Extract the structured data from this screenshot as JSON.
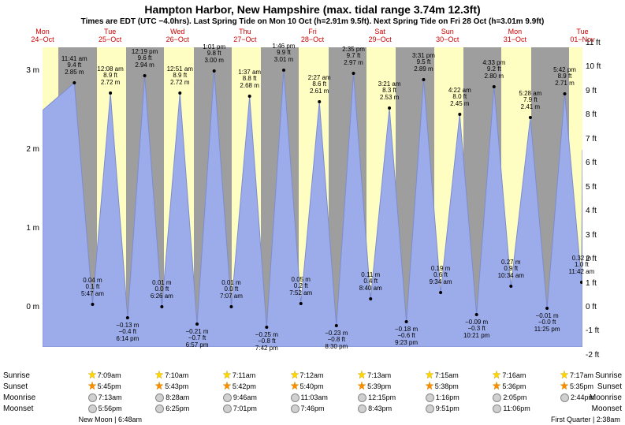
{
  "title": "Hampton Harbor, New Hampshire (max. tidal range 3.74m 12.3ft)",
  "subtitle": "Times are EDT (UTC −4.0hrs). Last Spring Tide on Mon 10 Oct (h=2.91m 9.5ft). Next Spring Tide on Fri 28 Oct (h=3.01m 9.9ft)",
  "colors": {
    "night_bg": "#9e9e9e",
    "day_bg": "#fffec2",
    "tide_fill": "#9cacea",
    "tide_stroke": "#7c8cd0",
    "date_text": "#cc0000",
    "sunrise_star": "#ffd700",
    "sunset_star": "#ff8c00",
    "moon_fill": "#d0d0d0"
  },
  "y_axis_m": {
    "min": -0.5,
    "max": 3.3,
    "ticks": [
      0,
      1,
      2,
      3
    ],
    "unit": "m"
  },
  "y_axis_ft": {
    "ticks": [
      -2,
      -1,
      0,
      1,
      2,
      3,
      4,
      5,
      6,
      7,
      8,
      9,
      10,
      11
    ],
    "unit": "ft"
  },
  "days": [
    {
      "dow": "Mon",
      "date": "24−Oct",
      "sunrise": "",
      "sunset": "",
      "moonrise": "",
      "moonset": ""
    },
    {
      "dow": "Tue",
      "date": "25−Oct",
      "sunrise": "7:09am",
      "sunset": "5:45pm",
      "moonrise": "7:13am",
      "moonset": "5:56pm"
    },
    {
      "dow": "Wed",
      "date": "26−Oct",
      "sunrise": "7:10am",
      "sunset": "5:43pm",
      "moonrise": "8:28am",
      "moonset": "6:25pm"
    },
    {
      "dow": "Thu",
      "date": "27−Oct",
      "sunrise": "7:11am",
      "sunset": "5:42pm",
      "moonrise": "9:46am",
      "moonset": "7:01pm"
    },
    {
      "dow": "Fri",
      "date": "28−Oct",
      "sunrise": "7:12am",
      "sunset": "5:40pm",
      "moonrise": "11:03am",
      "moonset": "7:46pm"
    },
    {
      "dow": "Sat",
      "date": "29−Oct",
      "sunrise": "7:13am",
      "sunset": "5:39pm",
      "moonrise": "12:15pm",
      "moonset": "8:43pm"
    },
    {
      "dow": "Sun",
      "date": "30−Oct",
      "sunrise": "7:15am",
      "sunset": "5:38pm",
      "moonrise": "1:16pm",
      "moonset": "9:51pm"
    },
    {
      "dow": "Mon",
      "date": "31−Oct",
      "sunrise": "7:16am",
      "sunset": "5:36pm",
      "moonrise": "2:05pm",
      "moonset": "11:06pm"
    },
    {
      "dow": "Tue",
      "date": "01−Nov",
      "sunrise": "7:17am",
      "sunset": "5:35pm",
      "moonrise": "2:44pm",
      "moonset": ""
    }
  ],
  "moon_phases": [
    {
      "label": "New Moon | 6:48am",
      "day_index": 1
    },
    {
      "label": "First Quarter | 2:38am",
      "day_index": 8
    }
  ],
  "sun_times": {
    "sunrise_hr": 7.2,
    "sunset_hr": 17.7
  },
  "tides": [
    {
      "day": 0,
      "hr": 23.3,
      "h_m": 2.85,
      "time": "11:41 am",
      "ft": "9.4 ft",
      "m": "2.85 m",
      "type": "high",
      "label_pos": "above"
    },
    {
      "day": 1,
      "hr": 5.78,
      "h_m": 0.04,
      "time": "5:47 am",
      "ft": "0.1 ft",
      "m": "0.04 m",
      "type": "low",
      "label_pos": "above"
    },
    {
      "day": 1,
      "hr": 12.13,
      "h_m": 2.72,
      "time": "12:08 am",
      "ft": "8.9 ft",
      "m": "2.72 m",
      "type": "high",
      "label_pos": "above"
    },
    {
      "day": 1,
      "hr": 18.23,
      "h_m": -0.13,
      "time": "6:14 pm",
      "ft": "−0.4 ft",
      "m": "−0.13 m",
      "type": "low",
      "label_pos": "below"
    },
    {
      "day": 2,
      "hr": 0.32,
      "h_m": 2.94,
      "time": "12:19 pm",
      "ft": "9.6 ft",
      "m": "2.94 m",
      "type": "high",
      "label_pos": "above"
    },
    {
      "day": 2,
      "hr": 6.43,
      "h_m": 0.01,
      "time": "6:26 am",
      "ft": "0.0 ft",
      "m": "0.01 m",
      "type": "low",
      "label_pos": "above"
    },
    {
      "day": 2,
      "hr": 12.85,
      "h_m": 2.72,
      "time": "12:51 am",
      "ft": "8.9 ft",
      "m": "2.72 m",
      "type": "high",
      "label_pos": "above"
    },
    {
      "day": 2,
      "hr": 18.95,
      "h_m": -0.21,
      "time": "6:57 pm",
      "ft": "−0.7 ft",
      "m": "−0.21 m",
      "type": "low",
      "label_pos": "below"
    },
    {
      "day": 3,
      "hr": 1.02,
      "h_m": 3.0,
      "time": "1:01 pm",
      "ft": "9.8 ft",
      "m": "3.00 m",
      "type": "high",
      "label_pos": "above"
    },
    {
      "day": 3,
      "hr": 7.12,
      "h_m": 0.01,
      "time": "7:07 am",
      "ft": "0.0 ft",
      "m": "0.01 m",
      "type": "low",
      "label_pos": "above"
    },
    {
      "day": 3,
      "hr": 13.62,
      "h_m": 2.68,
      "time": "1:37 am",
      "ft": "8.8 ft",
      "m": "2.68 m",
      "type": "high",
      "label_pos": "above"
    },
    {
      "day": 3,
      "hr": 19.7,
      "h_m": -0.25,
      "time": "7:42 pm",
      "ft": "−0.8 ft",
      "m": "−0.25 m",
      "type": "low",
      "label_pos": "below"
    },
    {
      "day": 4,
      "hr": 1.77,
      "h_m": 3.01,
      "time": "1:46 pm",
      "ft": "9.9 ft",
      "m": "3.01 m",
      "type": "high",
      "label_pos": "above"
    },
    {
      "day": 4,
      "hr": 7.87,
      "h_m": 0.05,
      "time": "7:52 am",
      "ft": "0.2 ft",
      "m": "0.05 m",
      "type": "low",
      "label_pos": "above"
    },
    {
      "day": 4,
      "hr": 14.45,
      "h_m": 2.61,
      "time": "2:27 am",
      "ft": "8.6 ft",
      "m": "2.61 m",
      "type": "high",
      "label_pos": "above"
    },
    {
      "day": 4,
      "hr": 20.5,
      "h_m": -0.23,
      "time": "8:30 pm",
      "ft": "−0.8 ft",
      "m": "−0.23 m",
      "type": "low",
      "label_pos": "below"
    },
    {
      "day": 5,
      "hr": 2.58,
      "h_m": 2.97,
      "time": "2:35 pm",
      "ft": "9.7 ft",
      "m": "2.97 m",
      "type": "high",
      "label_pos": "above"
    },
    {
      "day": 5,
      "hr": 8.67,
      "h_m": 0.11,
      "time": "8:40 am",
      "ft": "0.4 ft",
      "m": "0.11 m",
      "type": "low",
      "label_pos": "above"
    },
    {
      "day": 5,
      "hr": 15.35,
      "h_m": 2.53,
      "time": "3:21 am",
      "ft": "8.3 ft",
      "m": "2.53 m",
      "type": "high",
      "label_pos": "above"
    },
    {
      "day": 5,
      "hr": 21.38,
      "h_m": -0.18,
      "time": "9:23 pm",
      "ft": "−0.6 ft",
      "m": "−0.18 m",
      "type": "low",
      "label_pos": "below"
    },
    {
      "day": 6,
      "hr": 3.52,
      "h_m": 2.89,
      "time": "3:31 pm",
      "ft": "9.5 ft",
      "m": "2.89 m",
      "type": "high",
      "label_pos": "above"
    },
    {
      "day": 6,
      "hr": 9.57,
      "h_m": 0.19,
      "time": "9:34 am",
      "ft": "0.6 ft",
      "m": "0.19 m",
      "type": "low",
      "label_pos": "above"
    },
    {
      "day": 6,
      "hr": 16.37,
      "h_m": 2.45,
      "time": "4:22 am",
      "ft": "8.0 ft",
      "m": "2.45 m",
      "type": "high",
      "label_pos": "above"
    },
    {
      "day": 6,
      "hr": 22.35,
      "h_m": -0.09,
      "time": "10:21 pm",
      "ft": "−0.3 ft",
      "m": "−0.09 m",
      "type": "low",
      "label_pos": "below"
    },
    {
      "day": 7,
      "hr": 4.55,
      "h_m": 2.8,
      "time": "4:33 pm",
      "ft": "9.2 ft",
      "m": "2.80 m",
      "type": "high",
      "label_pos": "above"
    },
    {
      "day": 7,
      "hr": 10.57,
      "h_m": 0.27,
      "time": "10:34 am",
      "ft": "0.9 ft",
      "m": "0.27 m",
      "type": "low",
      "label_pos": "above"
    },
    {
      "day": 7,
      "hr": 17.47,
      "h_m": 2.41,
      "time": "5:28 am",
      "ft": "7.9 ft",
      "m": "2.41 m",
      "type": "high",
      "label_pos": "above"
    },
    {
      "day": 7,
      "hr": 23.42,
      "h_m": -0.01,
      "time": "11:25 pm",
      "ft": "−0.0 ft",
      "m": "−0.01 m",
      "type": "low",
      "label_pos": "below"
    },
    {
      "day": 8,
      "hr": 5.7,
      "h_m": 2.71,
      "time": "5:42 pm",
      "ft": "8.9 ft",
      "m": "2.71 m",
      "type": "high",
      "label_pos": "above"
    },
    {
      "day": 8,
      "hr": 11.7,
      "h_m": 0.32,
      "time": "11:42 am",
      "ft": "1.0 ft",
      "m": "0.32 m",
      "type": "low",
      "label_pos": "above"
    }
  ],
  "footer_labels": {
    "sunrise": "Sunrise",
    "sunset": "Sunset",
    "moonrise": "Moonrise",
    "moonset": "Moonset"
  }
}
